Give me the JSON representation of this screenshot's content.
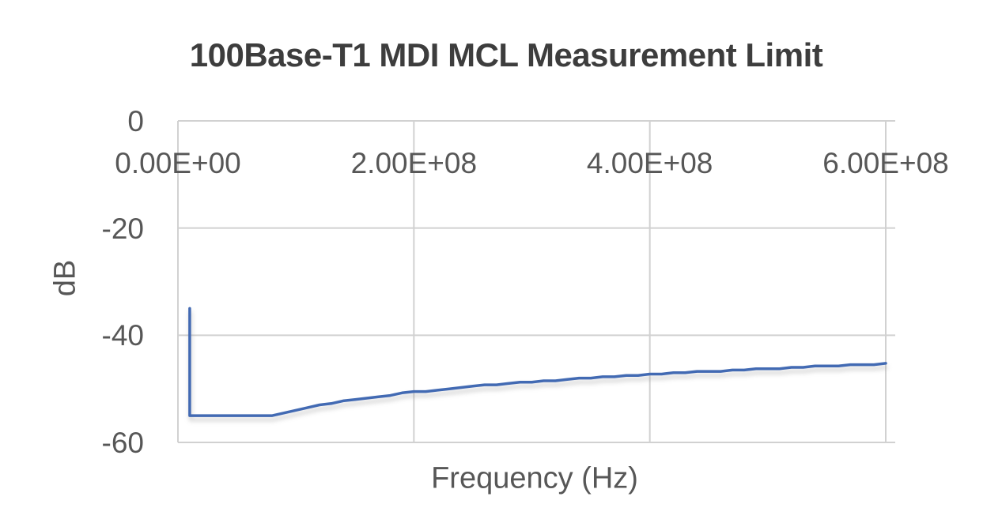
{
  "chart_data": {
    "type": "line",
    "title": "100Base-T1 MDI MCL Measurement Limit",
    "xlabel": "Frequency (Hz)",
    "ylabel": "dB",
    "xlim": [
      0,
      608000000
    ],
    "ylim": [
      -60,
      0
    ],
    "x_ticks": [
      0,
      200000000,
      400000000,
      600000000
    ],
    "x_tick_labels": [
      "0.00E+00",
      "2.00E+08",
      "4.00E+08",
      "6.00E+08"
    ],
    "y_ticks": [
      0,
      -20,
      -40,
      -60
    ],
    "y_tick_labels": [
      "0",
      "-20",
      "-40",
      "-60"
    ],
    "grid": true,
    "legend": false,
    "colors": {
      "line": "#426AB3",
      "gridline": "#d1d1d1",
      "title_text": "#3d3d3d",
      "label_text": "#575757"
    },
    "series": [
      {
        "name": "MCL measurement limit",
        "color": "#426AB3",
        "points": [
          [
            10000000.0,
            -35
          ],
          [
            10000000.0,
            -55
          ],
          [
            20000000.0,
            -55
          ],
          [
            30000000.0,
            -55
          ],
          [
            40000000.0,
            -55
          ],
          [
            50000000.0,
            -55
          ],
          [
            60000000.0,
            -55
          ],
          [
            70000000.0,
            -55
          ],
          [
            80000000.0,
            -55
          ],
          [
            90000000.0,
            -54.5
          ],
          [
            100000000.0,
            -54
          ],
          [
            110000000.0,
            -53.5
          ],
          [
            120000000.0,
            -53
          ],
          [
            130000000.0,
            -52.75
          ],
          [
            140000000.0,
            -52.25
          ],
          [
            150000000.0,
            -52
          ],
          [
            160000000.0,
            -51.75
          ],
          [
            170000000.0,
            -51.5
          ],
          [
            180000000.0,
            -51.25
          ],
          [
            190000000.0,
            -50.75
          ],
          [
            200000000.0,
            -50.5
          ],
          [
            210000000.0,
            -50.5
          ],
          [
            220000000.0,
            -50.25
          ],
          [
            230000000.0,
            -50
          ],
          [
            240000000.0,
            -49.75
          ],
          [
            250000000.0,
            -49.5
          ],
          [
            260000000.0,
            -49.25
          ],
          [
            270000000.0,
            -49.25
          ],
          [
            280000000.0,
            -49
          ],
          [
            290000000.0,
            -48.75
          ],
          [
            300000000.0,
            -48.75
          ],
          [
            310000000.0,
            -48.5
          ],
          [
            320000000.0,
            -48.5
          ],
          [
            330000000.0,
            -48.25
          ],
          [
            340000000.0,
            -48
          ],
          [
            350000000.0,
            -48
          ],
          [
            360000000.0,
            -47.75
          ],
          [
            370000000.0,
            -47.75
          ],
          [
            380000000.0,
            -47.5
          ],
          [
            390000000.0,
            -47.5
          ],
          [
            400000000.0,
            -47.25
          ],
          [
            410000000.0,
            -47.25
          ],
          [
            420000000.0,
            -47
          ],
          [
            430000000.0,
            -47
          ],
          [
            440000000.0,
            -46.75
          ],
          [
            450000000.0,
            -46.75
          ],
          [
            460000000.0,
            -46.75
          ],
          [
            470000000.0,
            -46.5
          ],
          [
            480000000.0,
            -46.5
          ],
          [
            490000000.0,
            -46.25
          ],
          [
            500000000.0,
            -46.25
          ],
          [
            510000000.0,
            -46.25
          ],
          [
            520000000.0,
            -46
          ],
          [
            530000000.0,
            -46
          ],
          [
            540000000.0,
            -45.75
          ],
          [
            550000000.0,
            -45.75
          ],
          [
            560000000.0,
            -45.75
          ],
          [
            570000000.0,
            -45.5
          ],
          [
            580000000.0,
            -45.5
          ],
          [
            590000000.0,
            -45.5
          ],
          [
            600000000.0,
            -45.25
          ]
        ]
      }
    ]
  }
}
